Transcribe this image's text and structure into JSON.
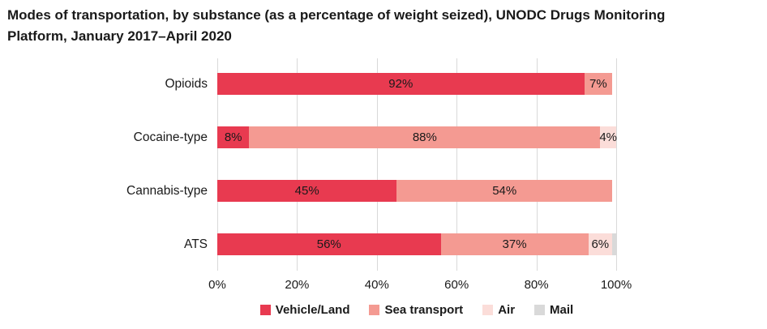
{
  "title": {
    "lines": [
      "Modes of transportation, by substance (as a percentage of weight seized), UNODC Drugs Monitoring",
      "Platform, January 2017–April 2020"
    ]
  },
  "colors": {
    "vehicle_land": "#e83a50",
    "sea_transport": "#f49a92",
    "air": "#fbddd9",
    "mail": "#d9d9d9",
    "gridline": "#d9d9d9",
    "text": "#1a1a1a"
  },
  "chart_data": {
    "type": "bar",
    "orientation": "horizontal",
    "stacked": true,
    "title": "Modes of transportation, by substance (as a percentage of weight seized), UNODC Drugs Monitoring Platform, January 2017–April 2020",
    "categories": [
      "Opioids",
      "Cocaine-type",
      "Cannabis-type",
      "ATS"
    ],
    "series": [
      {
        "name": "Vehicle/Land",
        "color": "#e83a50",
        "values": [
          92,
          8,
          45,
          56
        ]
      },
      {
        "name": "Sea transport",
        "color": "#f49a92",
        "values": [
          7,
          88,
          54,
          37
        ]
      },
      {
        "name": "Air",
        "color": "#fbddd9",
        "values": [
          0,
          4,
          0,
          6
        ]
      },
      {
        "name": "Mail",
        "color": "#d9d9d9",
        "values": [
          0,
          0,
          0,
          1
        ]
      }
    ],
    "value_label_format": "percent",
    "xlim": [
      0,
      100
    ],
    "x_ticks": [
      "0%",
      "20%",
      "40%",
      "60%",
      "80%",
      "100%"
    ],
    "grid": "vertical",
    "legend": [
      "Vehicle/Land",
      "Sea transport",
      "Air",
      "Mail"
    ],
    "legend_position": "bottom"
  }
}
